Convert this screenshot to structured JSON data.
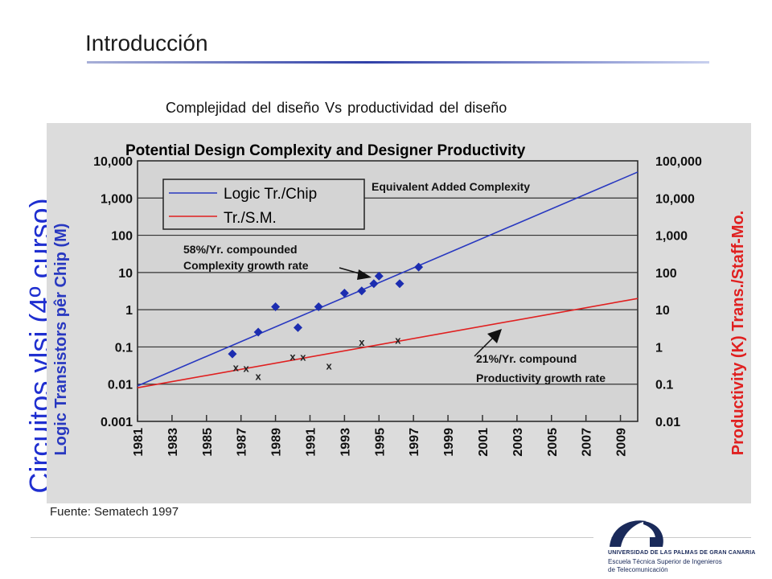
{
  "slide": {
    "title": "Introducción",
    "vertical_label": "Circuitos vlsi (4º curso)",
    "subtitle": "Complejidad del diseño Vs productividad del diseño",
    "source": "Fuente: Sematech 1997"
  },
  "logo": {
    "university": "UNIVERSIDAD DE LAS PALMAS DE GRAN CANARIA",
    "school_line1": "Escuela Técnica Superior de Ingenieros",
    "school_line2": "de Telecomunicación"
  },
  "colors": {
    "accent_blue": "#1f2fd0",
    "logic_line": "#2838c0",
    "productivity_line": "#e02020",
    "marker_blue": "#1c2db0",
    "chart_background": "#dcdcdc"
  },
  "chart_data": {
    "type": "line",
    "title": "Potential Design Complexity and Designer Productivity",
    "ylabel_left": "Logic Transistors pêr Chip (M)",
    "ylabel_right": "Productivity (K) Trans./Staff-Mo.",
    "yscale": "log",
    "ylim_left": [
      0.001,
      10000
    ],
    "ylim_right": [
      0.01,
      100000
    ],
    "xlim": [
      1981,
      2010
    ],
    "x_ticks": [
      "1981",
      "1983",
      "1985",
      "1987",
      "1989",
      "1991",
      "1993",
      "1995",
      "1997",
      "1999",
      "2001",
      "2003",
      "2005",
      "2007",
      "2009"
    ],
    "y_ticks_left": [
      "10,000",
      "1,000",
      "100",
      "10",
      "1",
      "0.1",
      "0.01",
      "0.001"
    ],
    "y_ticks_right": [
      "100,000",
      "10,000",
      "1,000",
      "100",
      "10",
      "1",
      "0.1",
      "0.01"
    ],
    "grid": true,
    "legend_position": "top-left",
    "series": [
      {
        "name": "Logic Tr./Chip",
        "axis": "left",
        "x": [
          1981,
          2010
        ],
        "y": [
          0.009,
          5000
        ]
      },
      {
        "name": "Tr./S.M.",
        "axis": "right",
        "x": [
          1981,
          2010
        ],
        "y": [
          0.08,
          20
        ]
      }
    ],
    "points": [
      {
        "marker": "diamond",
        "axis": "left",
        "x": [
          1986.5,
          1988,
          1989,
          1990.3,
          1991.5,
          1993,
          1994,
          1994.7,
          1995,
          1996.2,
          1997.3
        ],
        "y": [
          0.065,
          0.25,
          1.2,
          0.33,
          1.2,
          2.8,
          3.2,
          5,
          8,
          5,
          14
        ]
      },
      {
        "marker": "x",
        "axis": "right",
        "x": [
          1986.7,
          1987.3,
          1988,
          1990,
          1990.6,
          1992.1,
          1994,
          1996.1
        ],
        "y": [
          0.27,
          0.26,
          0.16,
          0.54,
          0.52,
          0.3,
          1.3,
          1.5
        ]
      }
    ],
    "annotations": [
      {
        "text": "Equivalent Added Complexity"
      },
      {
        "text": "58%/Yr. compounded"
      },
      {
        "text": "Complexity growth rate"
      },
      {
        "text": "21%/Yr. compound"
      },
      {
        "text": "Productivity growth rate"
      }
    ]
  }
}
